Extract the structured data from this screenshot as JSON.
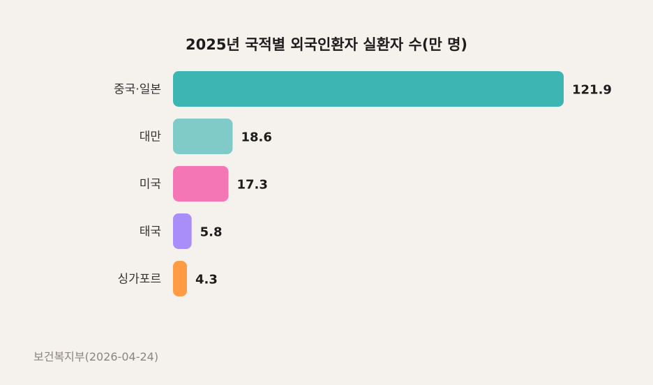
{
  "chart_data": {
    "type": "bar",
    "orientation": "horizontal",
    "title": "2025년 국적별 외국인환자 실환자 수(만 명)",
    "categories": [
      "중국·일본",
      "대만",
      "미국",
      "태국",
      "싱가포르"
    ],
    "values": [
      121.9,
      18.6,
      17.3,
      5.8,
      4.3
    ],
    "value_labels": [
      "121.9",
      "18.6",
      "17.3",
      "5.8",
      "4.3"
    ],
    "colors": [
      "#3db5b2",
      "#80cbc7",
      "#f576b5",
      "#a98df8",
      "#ff9a45"
    ],
    "xlim": [
      0,
      121.9
    ],
    "grid": false,
    "legend": "none",
    "unit": "만 명"
  },
  "source": "보건복지부(2026-04-24)"
}
